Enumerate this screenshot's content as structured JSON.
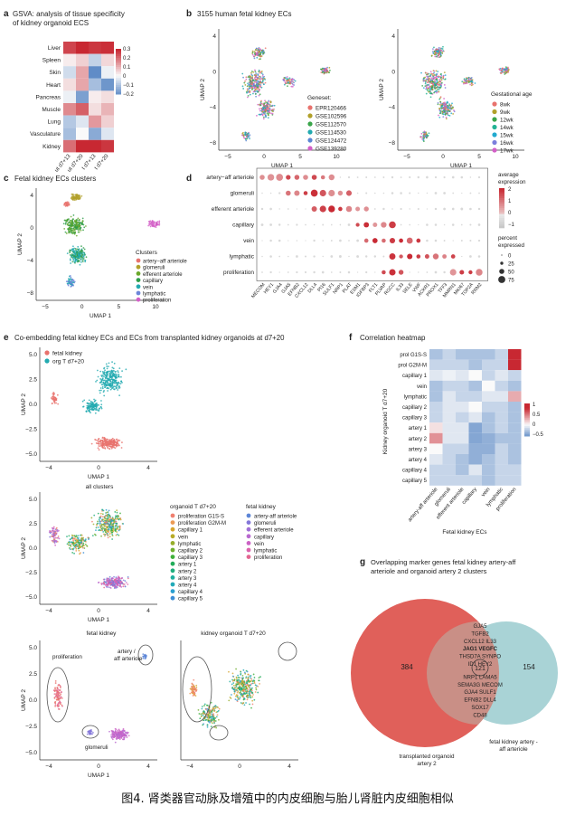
{
  "caption": "图4. 肾类器官动脉及增殖中的内皮细胞与胎儿肾脏内皮细胞相似",
  "panel_a": {
    "letter": "a",
    "title_line1": "GSVA: analysis of tissue specificity",
    "title_line2": "of kidney organoid ECS",
    "rows": [
      "Liver",
      "Spleen",
      "Skin",
      "Heart",
      "Pancreas",
      "Muscle",
      "Lung",
      "Vasculature",
      "Kidney"
    ],
    "cols": [
      "ut d7+13",
      "ut d7+20",
      "t d7+13",
      "t d7+20"
    ],
    "values": [
      [
        0.26,
        0.3,
        0.28,
        0.29
      ],
      [
        0.02,
        0.06,
        -0.08,
        0.05
      ],
      [
        -0.06,
        0.12,
        -0.22,
        -0.02
      ],
      [
        0.04,
        0.12,
        -0.12,
        -0.2
      ],
      [
        -0.02,
        -0.18,
        0.02,
        0.04
      ],
      [
        0.16,
        0.22,
        0.04,
        0.1
      ],
      [
        -0.1,
        -0.04,
        0.14,
        0.06
      ],
      [
        -0.12,
        0.0,
        -0.16,
        -0.04
      ],
      [
        0.2,
        0.3,
        0.3,
        0.28
      ]
    ],
    "legend_ticks": [
      "0.3",
      "0.2",
      "0.1",
      "0",
      "−0.1",
      "−0.2"
    ]
  },
  "panel_b": {
    "letter": "b",
    "title": "3155 human fetal kidney ECs",
    "xlabel": "UMAP 1",
    "ylabel": "UMAP 2",
    "xticks": [
      "−5",
      "0",
      "5",
      "10"
    ],
    "yticks": [
      "4",
      "0",
      "−4",
      "−8"
    ],
    "legend1_title": "Geneset:",
    "legend1": [
      {
        "label": "EPR120466",
        "color": "#e8726d"
      },
      {
        "label": "GSE102596",
        "color": "#b1a02a"
      },
      {
        "label": "GSE112570",
        "color": "#3aa54a"
      },
      {
        "label": "GSE114530",
        "color": "#22aab0"
      },
      {
        "label": "GSE124472",
        "color": "#5c86d4"
      },
      {
        "label": "GSE139280",
        "color": "#d35fc7"
      }
    ],
    "legend2_title": "Gestational age",
    "legend2": [
      {
        "label": "8wk",
        "color": "#e8726d"
      },
      {
        "label": "9wk",
        "color": "#b1a02a"
      },
      {
        "label": "12wk",
        "color": "#3aa54a"
      },
      {
        "label": "14wk",
        "color": "#22b394"
      },
      {
        "label": "15wk",
        "color": "#22aacf"
      },
      {
        "label": "16wk",
        "color": "#7b7fdc"
      },
      {
        "label": "17wk",
        "color": "#d35fc7"
      }
    ]
  },
  "panel_c": {
    "letter": "c",
    "title": "Fetal kidney ECs clusters",
    "xlabel": "UMAP 1",
    "ylabel": "UMAP 2",
    "xticks": [
      "−5",
      "0",
      "5",
      "10"
    ],
    "yticks": [
      "4",
      "0",
      "−4",
      "−8"
    ],
    "legend_title": "Clusters",
    "clusters": [
      {
        "label": "artery−aff arteriole",
        "color": "#e8726d"
      },
      {
        "label": "glomeruli",
        "color": "#b1a02a"
      },
      {
        "label": "efferent arteriole",
        "color": "#6aa82a"
      },
      {
        "label": "capillary",
        "color": "#2e9e4a"
      },
      {
        "label": "vein",
        "color": "#22aab0"
      },
      {
        "label": "lymphatic",
        "color": "#6d86d9"
      },
      {
        "label": "proliferation",
        "color": "#d35fc7"
      }
    ]
  },
  "panel_d": {
    "letter": "d",
    "rows": [
      "artery−aff arteriole",
      "glomeruli",
      "efferent arteriole",
      "capillary",
      "vein",
      "lymphatic",
      "proliferation"
    ],
    "genes": [
      "MECOM",
      "HEY1",
      "GJA4",
      "GJA5",
      "EFNB2",
      "CXCL12",
      "DLL4",
      "PI16",
      "SULF1",
      "NRP1",
      "PLAT",
      "ESM1",
      "IGFBP3",
      "FLT1",
      "PLVAP",
      "RGCC",
      "IL33",
      "SELE",
      "VWF",
      "ACKR1",
      "PROX1",
      "TFF3",
      "MMRN1",
      "MKI67",
      "TOP2A",
      "RRM2"
    ],
    "exp_title_line1": "average",
    "exp_title_line2": "expression",
    "exp_ticks": [
      "2",
      "1",
      "0",
      "−1"
    ],
    "pct_title_line1": "percent",
    "pct_title_line2": "expressed",
    "pct_ticks": [
      "0",
      "25",
      "50",
      "75"
    ]
  },
  "panel_e": {
    "letter": "e",
    "title": "Co-embedding fetal kidney ECs and ECs from transplanted kidney organoids at d7+20",
    "legend_top": [
      {
        "label": "fetal kidney",
        "color": "#e8726d"
      },
      {
        "label": "org T d7+20",
        "color": "#22aab0"
      }
    ],
    "xlabel": "UMAP 1",
    "ylabel": "UMAP 2",
    "xticks": [
      "−4",
      "0",
      "4"
    ],
    "yticks": [
      "5.0",
      "2.5",
      "0.0",
      "−2.5",
      "−5.0"
    ],
    "mid_title": "all clusters",
    "organoid_header": "organoid T d7+20",
    "organoid_clusters": [
      {
        "label": "proliferation G1S-S",
        "color": "#f08070"
      },
      {
        "label": "proliferation G2M-M",
        "color": "#ec9a55"
      },
      {
        "label": "capillary 1",
        "color": "#d6a52e"
      },
      {
        "label": "vein",
        "color": "#b8ab28"
      },
      {
        "label": "lymphatic",
        "color": "#96ae2c"
      },
      {
        "label": "capillary 2",
        "color": "#6fb02f"
      },
      {
        "label": "capillary 3",
        "color": "#3fb03a"
      },
      {
        "label": "artery 1",
        "color": "#22ad5a"
      },
      {
        "label": "artery 2",
        "color": "#20ad7d"
      },
      {
        "label": "artery 3",
        "color": "#1faf9e"
      },
      {
        "label": "artery 4",
        "color": "#22aab8"
      },
      {
        "label": "capillary 4",
        "color": "#2a9fd0"
      },
      {
        "label": "capillary 5",
        "color": "#3d8ed6"
      }
    ],
    "fetal_header": "fetal kidney",
    "fetal_clusters": [
      {
        "label": "artery-aff arteriole",
        "color": "#5d86d7"
      },
      {
        "label": "glomeruli",
        "color": "#8377d9"
      },
      {
        "label": "efferent arteriole",
        "color": "#a16fd6"
      },
      {
        "label": "capillary",
        "color": "#b969d0"
      },
      {
        "label": "vein",
        "color": "#cc63c5"
      },
      {
        "label": "lymphatic",
        "color": "#db63ad"
      },
      {
        "label": "proliferation",
        "color": "#e36691"
      }
    ],
    "bottom_left_title": "fetal kidney",
    "bottom_right_title": "kidney organoid T d7+20",
    "ann_proliferation": "proliferation",
    "ann_artery_line1": "artery /",
    "ann_artery_line2": "aff arteriole",
    "ann_glomeruli": "glomeruli"
  },
  "panel_f": {
    "letter": "f",
    "title": "Correlation heatmap",
    "rows": [
      "prol G1S-S",
      "prol G2M-M",
      "capillary 1",
      "vein",
      "lymphatic",
      "capillary 2",
      "capillary 3",
      "artery 1",
      "artery 2",
      "artery 3",
      "artery 4",
      "capillary 4",
      "capillary 5"
    ],
    "cols": [
      "artery-aff arteriole",
      "glomeruli",
      "efferent arteriole",
      "capillary",
      "vein",
      "lymphatic",
      "proliferation"
    ],
    "values": [
      [
        -0.3,
        -0.2,
        -0.3,
        -0.3,
        -0.3,
        -0.2,
        0.9
      ],
      [
        -0.2,
        -0.2,
        -0.2,
        -0.3,
        -0.2,
        -0.2,
        0.8
      ],
      [
        -0.1,
        -0.05,
        -0.1,
        0.0,
        -0.2,
        -0.1,
        -0.2
      ],
      [
        -0.3,
        -0.2,
        -0.2,
        -0.3,
        0.0,
        -0.2,
        -0.3
      ],
      [
        -0.3,
        -0.1,
        -0.2,
        -0.2,
        -0.1,
        -0.1,
        0.3
      ],
      [
        -0.2,
        -0.1,
        -0.1,
        0.0,
        -0.2,
        -0.2,
        -0.3
      ],
      [
        -0.2,
        -0.1,
        -0.2,
        -0.1,
        -0.3,
        -0.2,
        -0.3
      ],
      [
        0.1,
        -0.1,
        -0.1,
        -0.45,
        -0.3,
        -0.2,
        -0.3
      ],
      [
        0.4,
        -0.1,
        -0.1,
        -0.45,
        -0.4,
        -0.3,
        -0.3
      ],
      [
        0.0,
        -0.2,
        -0.2,
        -0.4,
        -0.4,
        -0.2,
        -0.3
      ],
      [
        -0.1,
        -0.2,
        -0.3,
        -0.4,
        -0.3,
        -0.2,
        -0.3
      ],
      [
        -0.2,
        -0.2,
        -0.3,
        -0.1,
        -0.3,
        -0.2,
        -0.2
      ],
      [
        -0.2,
        -0.2,
        -0.2,
        -0.2,
        -0.3,
        -0.2,
        -0.2
      ]
    ],
    "ylabel": "Kidney organoid T d7+20",
    "xlabel": "Fetal kidney ECs",
    "legend_ticks": [
      "1",
      "0.5",
      "0",
      "−0.5"
    ]
  },
  "panel_g": {
    "letter": "g",
    "title_line1": "Overlapping marker genes fetal kidney artery-aff",
    "title_line2": "arteriole and organoid artery 2 clusters",
    "left_count": "384",
    "overlap_count": "121",
    "right_count": "154",
    "left_label_line1": "transplanted organoid",
    "left_label_line2": "artery 2",
    "right_label_line1": "fetal kidney artery -",
    "right_label_line2": "aff arteriole",
    "genes": [
      "GJA5",
      "TGFB2",
      "CXCL12  IL33",
      "JAG1   VEGFC",
      "THSD7A  SYNPO",
      "ID1    HEY2",
      "NRP1   LAMA5",
      "SEMA3G  MECOM",
      "GJA4   SULF1",
      "EFNB2  DLL4",
      "SOX17",
      "CD48"
    ],
    "colors": {
      "left": "#e0605a",
      "right": "#a9d3d6",
      "overlap": "#c98f86"
    }
  }
}
